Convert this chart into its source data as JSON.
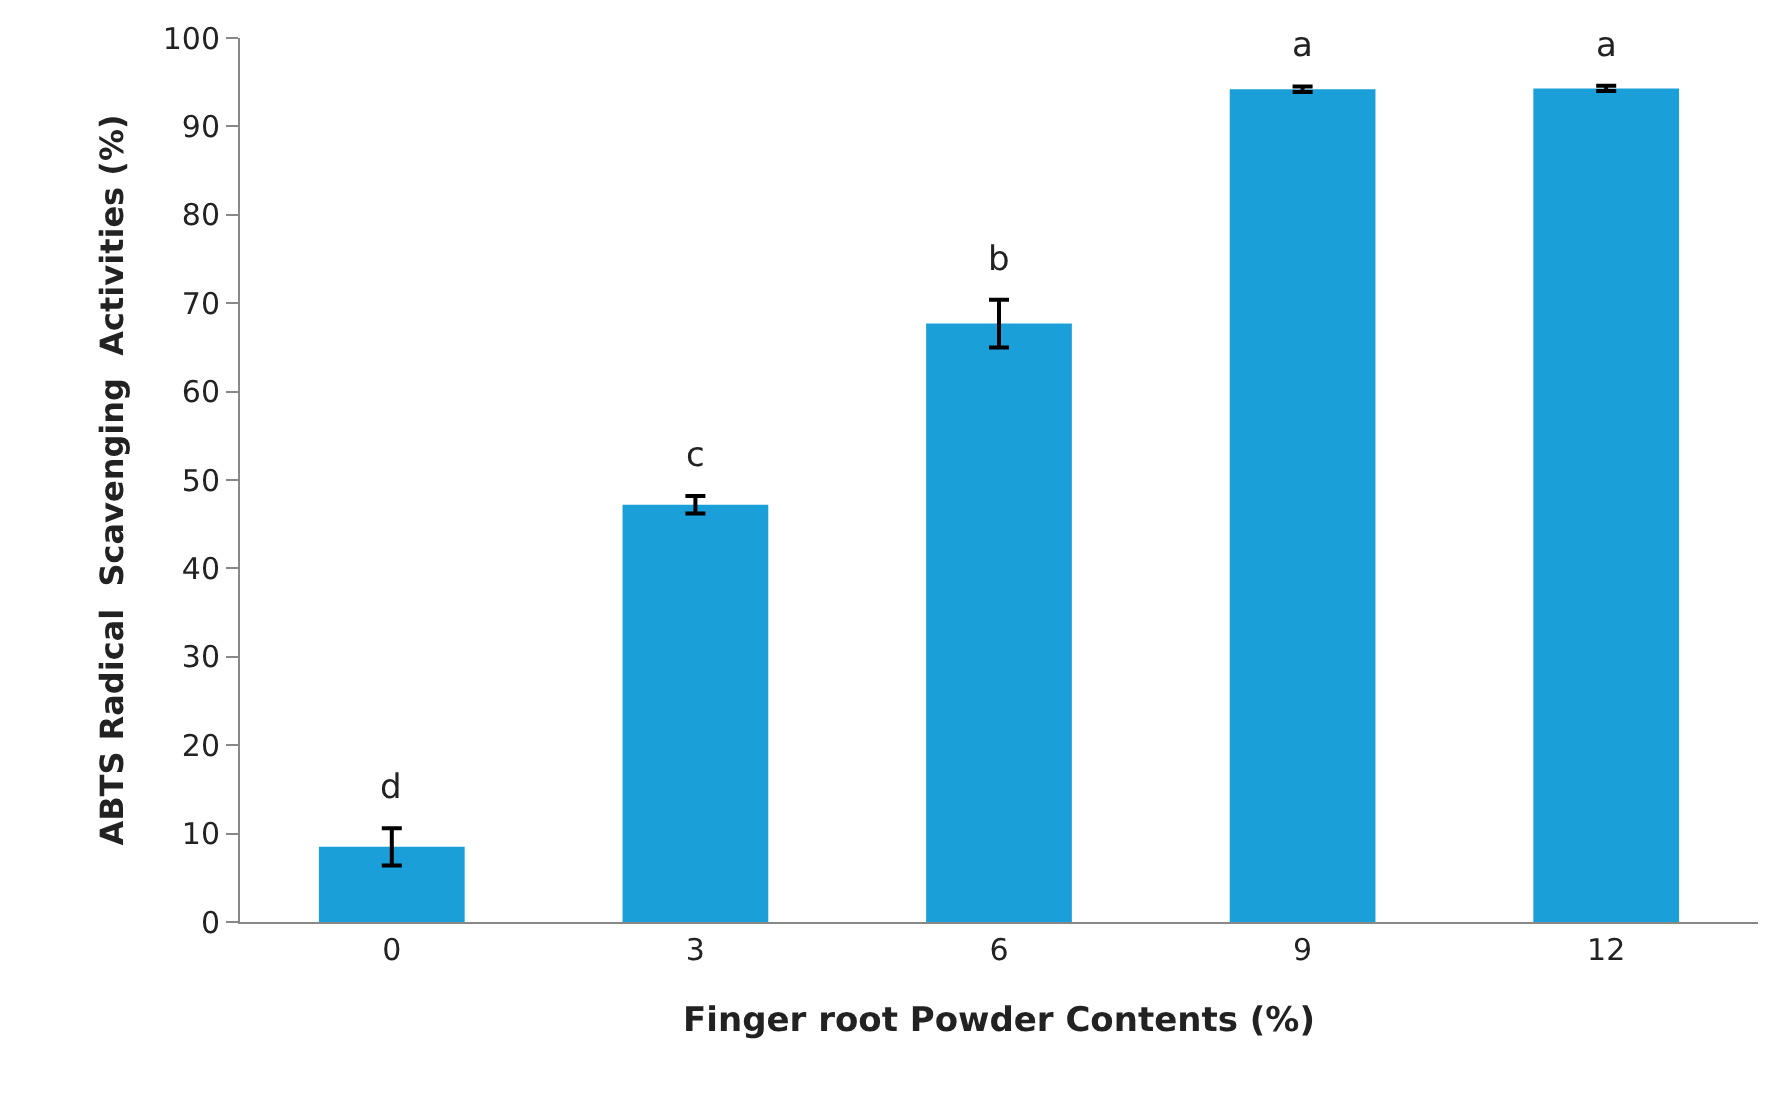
{
  "chart_data": {
    "type": "bar",
    "xlabel": "Finger root Powder Contents (%)",
    "ylabel": "ABTS Radical  Scavenging  Activities (%)",
    "categories": [
      "0",
      "3",
      "6",
      "9",
      "12"
    ],
    "values": [
      8.5,
      47.2,
      67.7,
      94.2,
      94.3
    ],
    "errors": [
      2.1,
      1,
      2.7,
      0.3,
      0.3
    ],
    "value_labels": [
      "d",
      "c",
      "b",
      "a",
      "a"
    ],
    "color": "#1a9fd8",
    "ylim": [
      0,
      100
    ],
    "yticks": [
      0,
      10,
      20,
      30,
      40,
      50,
      60,
      70,
      80,
      90,
      100
    ],
    "grid": false,
    "legend": false
  }
}
